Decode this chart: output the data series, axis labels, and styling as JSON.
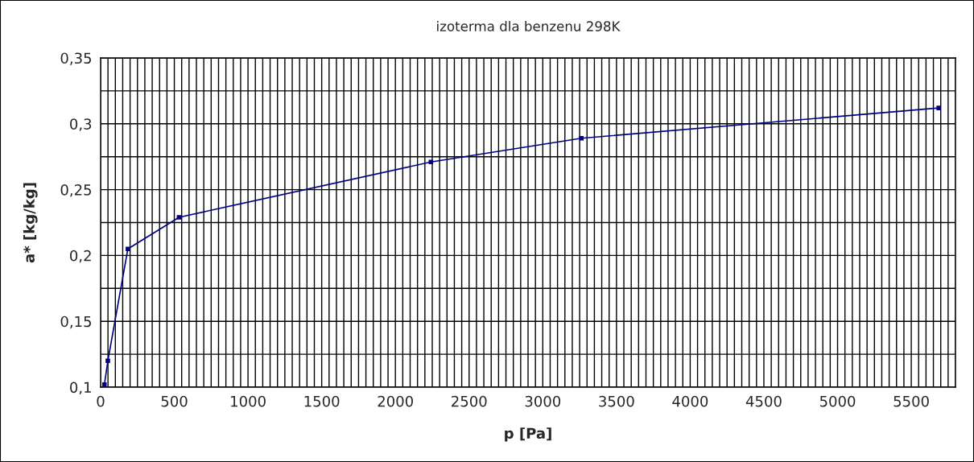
{
  "chart_data": {
    "type": "line",
    "title": "izoterma dla benzenu 298K",
    "xlabel": "p [Pa]",
    "ylabel": "a* [kg/kg]",
    "x": [
      26,
      49,
      185,
      532,
      2241,
      3262,
      5686
    ],
    "series": [
      {
        "color": "#000080",
        "values": [
          0.102,
          0.12,
          0.205,
          0.229,
          0.271,
          0.289,
          0.312
        ]
      }
    ],
    "marker": "square",
    "line_style": "solid",
    "grid": true,
    "xlim": [
      0,
      5800
    ],
    "xticks": [
      0,
      {
        "value": 50,
        "label": null
      },
      {
        "value": 100,
        "label": null
      },
      {
        "value": 150,
        "label": null
      },
      {
        "value": 200,
        "label": null
      },
      {
        "value": 250,
        "label": null
      },
      {
        "value": 300,
        "label": null
      },
      {
        "value": 350,
        "label": null
      },
      {
        "value": 400,
        "label": null
      },
      {
        "value": 450,
        "label": null
      },
      500,
      {
        "value": 550,
        "label": null
      },
      {
        "value": 600,
        "label": null
      },
      {
        "value": 650,
        "label": null
      },
      {
        "value": 700,
        "label": null
      },
      {
        "value": 750,
        "label": null
      },
      {
        "value": 800,
        "label": null
      },
      {
        "value": 850,
        "label": null
      },
      {
        "value": 900,
        "label": null
      },
      {
        "value": 950,
        "label": null
      },
      1000,
      {
        "value": 1050,
        "label": null
      },
      {
        "value": 1100,
        "label": null
      },
      {
        "value": 1150,
        "label": null
      },
      {
        "value": 1200,
        "label": null
      },
      {
        "value": 1250,
        "label": null
      },
      {
        "value": 1300,
        "label": null
      },
      {
        "value": 1350,
        "label": null
      },
      {
        "value": 1400,
        "label": null
      },
      {
        "value": 1450,
        "label": null
      },
      1500,
      {
        "value": 1550,
        "label": null
      },
      {
        "value": 1600,
        "label": null
      },
      {
        "value": 1650,
        "label": null
      },
      {
        "value": 1700,
        "label": null
      },
      {
        "value": 1750,
        "label": null
      },
      {
        "value": 1800,
        "label": null
      },
      {
        "value": 1850,
        "label": null
      },
      {
        "value": 1900,
        "label": null
      },
      {
        "value": 1950,
        "label": null
      },
      2000,
      {
        "value": 2050,
        "label": null
      },
      {
        "value": 2100,
        "label": null
      },
      {
        "value": 2150,
        "label": null
      },
      {
        "value": 2200,
        "label": null
      },
      {
        "value": 2250,
        "label": null
      },
      {
        "value": 2300,
        "label": null
      },
      {
        "value": 2350,
        "label": null
      },
      {
        "value": 2400,
        "label": null
      },
      {
        "value": 2450,
        "label": null
      },
      2500,
      {
        "value": 2550,
        "label": null
      },
      {
        "value": 2600,
        "label": null
      },
      {
        "value": 2650,
        "label": null
      },
      {
        "value": 2700,
        "label": null
      },
      {
        "value": 2750,
        "label": null
      },
      {
        "value": 2800,
        "label": null
      },
      {
        "value": 2850,
        "label": null
      },
      {
        "value": 2900,
        "label": null
      },
      {
        "value": 2950,
        "label": null
      },
      3000,
      {
        "value": 3050,
        "label": null
      },
      {
        "value": 3100,
        "label": null
      },
      {
        "value": 3150,
        "label": null
      },
      {
        "value": 3200,
        "label": null
      },
      {
        "value": 3250,
        "label": null
      },
      {
        "value": 3300,
        "label": null
      },
      {
        "value": 3350,
        "label": null
      },
      {
        "value": 3400,
        "label": null
      },
      {
        "value": 3450,
        "label": null
      },
      3500,
      {
        "value": 3550,
        "label": null
      },
      {
        "value": 3600,
        "label": null
      },
      {
        "value": 3650,
        "label": null
      },
      {
        "value": 3700,
        "label": null
      },
      {
        "value": 3750,
        "label": null
      },
      {
        "value": 3800,
        "label": null
      },
      {
        "value": 3850,
        "label": null
      },
      {
        "value": 3900,
        "label": null
      },
      {
        "value": 3950,
        "label": null
      },
      4000,
      {
        "value": 4050,
        "label": null
      },
      {
        "value": 4100,
        "label": null
      },
      {
        "value": 4150,
        "label": null
      },
      {
        "value": 4200,
        "label": null
      },
      {
        "value": 4250,
        "label": null
      },
      {
        "value": 4300,
        "label": null
      },
      {
        "value": 4350,
        "label": null
      },
      {
        "value": 4400,
        "label": null
      },
      {
        "value": 4450,
        "label": null
      },
      4500,
      {
        "value": 4550,
        "label": null
      },
      {
        "value": 4600,
        "label": null
      },
      {
        "value": 4650,
        "label": null
      },
      {
        "value": 4700,
        "label": null
      },
      {
        "value": 4750,
        "label": null
      },
      {
        "value": 4800,
        "label": null
      },
      {
        "value": 4850,
        "label": null
      },
      {
        "value": 4900,
        "label": null
      },
      {
        "value": 4950,
        "label": null
      },
      5000,
      {
        "value": 5050,
        "label": null
      },
      {
        "value": 5100,
        "label": null
      },
      {
        "value": 5150,
        "label": null
      },
      {
        "value": 5200,
        "label": null
      },
      {
        "value": 5250,
        "label": null
      },
      {
        "value": 5300,
        "label": null
      },
      {
        "value": 5350,
        "label": null
      },
      {
        "value": 5400,
        "label": null
      },
      {
        "value": 5450,
        "label": null
      },
      5500,
      {
        "value": 5550,
        "label": null
      },
      {
        "value": 5600,
        "label": null
      },
      {
        "value": 5650,
        "label": null
      },
      {
        "value": 5700,
        "label": null
      },
      {
        "value": 5750,
        "label": null
      },
      {
        "value": 5800,
        "label": null
      }
    ],
    "ylim": [
      0.1,
      0.35
    ],
    "yticks": [
      {
        "value": 0.1,
        "label": "0,1"
      },
      {
        "value": 0.125,
        "label": null
      },
      {
        "value": 0.15,
        "label": "0,15"
      },
      {
        "value": 0.175,
        "label": null
      },
      {
        "value": 0.2,
        "label": "0,2"
      },
      {
        "value": 0.225,
        "label": null
      },
      {
        "value": 0.25,
        "label": "0,25"
      },
      {
        "value": 0.275,
        "label": null
      },
      {
        "value": 0.3,
        "label": "0,3"
      },
      {
        "value": 0.325,
        "label": null
      },
      {
        "value": 0.35,
        "label": "0,35"
      }
    ]
  }
}
